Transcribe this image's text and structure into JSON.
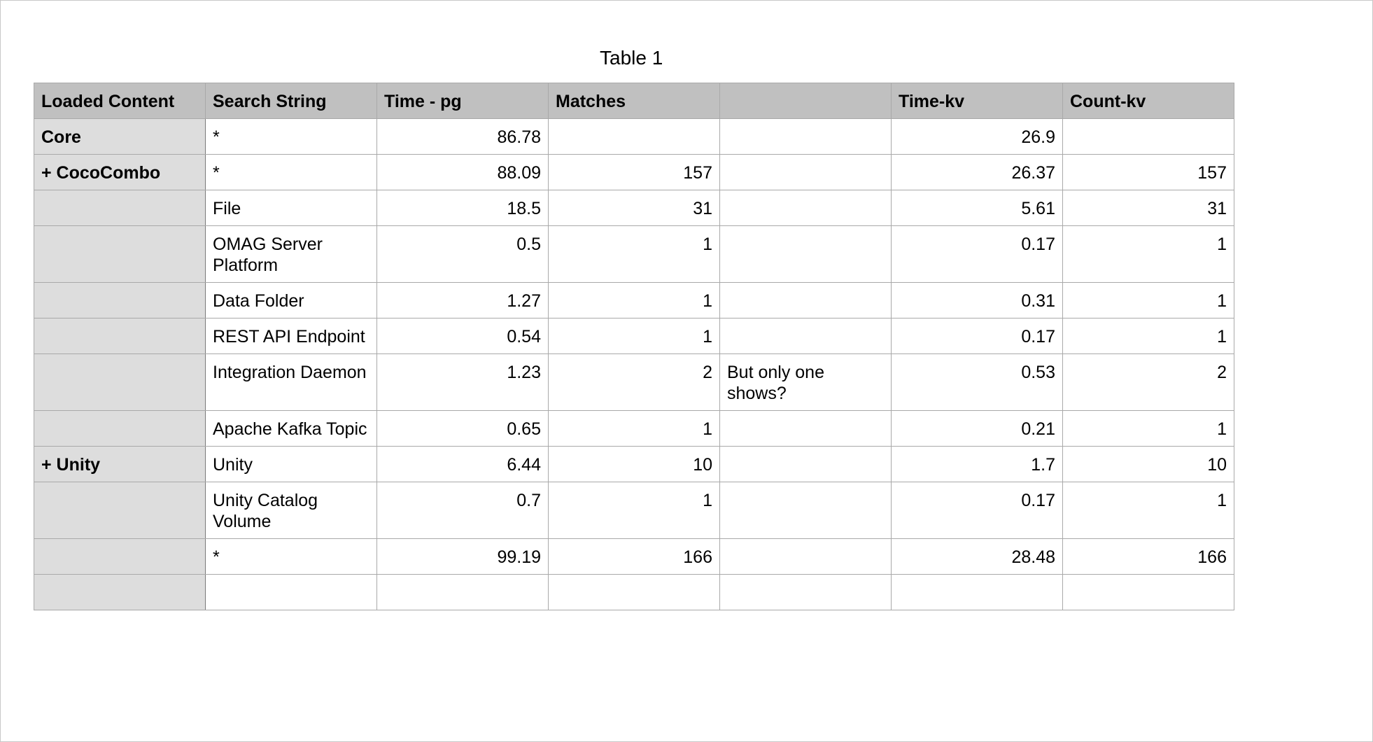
{
  "title": "Table 1",
  "columns": [
    "Loaded Content",
    "Search String",
    "Time - pg",
    "Matches",
    "",
    "Time-kv",
    "Count-kv"
  ],
  "rows": [
    {
      "cells": [
        "Core",
        "*",
        "86.78",
        "",
        "",
        "26.9",
        ""
      ],
      "tall": false
    },
    {
      "cells": [
        "+ CocoCombo",
        "*",
        "88.09",
        "157",
        "",
        "26.37",
        "157"
      ],
      "tall": false
    },
    {
      "cells": [
        "",
        "File",
        "18.5",
        "31",
        "",
        "5.61",
        "31"
      ],
      "tall": false
    },
    {
      "cells": [
        "",
        "OMAG Server Platform",
        "0.5",
        "1",
        "",
        "0.17",
        "1"
      ],
      "tall": true
    },
    {
      "cells": [
        "",
        "Data Folder",
        "1.27",
        "1",
        "",
        "0.31",
        "1"
      ],
      "tall": false
    },
    {
      "cells": [
        "",
        "REST API Endpoint",
        "0.54",
        "1",
        "",
        "0.17",
        "1"
      ],
      "tall": false
    },
    {
      "cells": [
        "",
        "Integration Daemon",
        "1.23",
        "2",
        "But only one shows?",
        "0.53",
        "2"
      ],
      "tall": true
    },
    {
      "cells": [
        "",
        "Apache Kafka Topic",
        "0.65",
        "1",
        "",
        "0.21",
        "1"
      ],
      "tall": false
    },
    {
      "cells": [
        "+ Unity",
        "Unity",
        "6.44",
        "10",
        "",
        "1.7",
        "10"
      ],
      "tall": false
    },
    {
      "cells": [
        "",
        "Unity Catalog Volume",
        "0.7",
        "1",
        "",
        "0.17",
        "1"
      ],
      "tall": true
    },
    {
      "cells": [
        "",
        "*",
        "99.19",
        "166",
        "",
        "28.48",
        "166"
      ],
      "tall": false
    },
    {
      "cells": [
        "",
        "",
        "",
        "",
        "",
        "",
        ""
      ],
      "tall": false
    }
  ]
}
